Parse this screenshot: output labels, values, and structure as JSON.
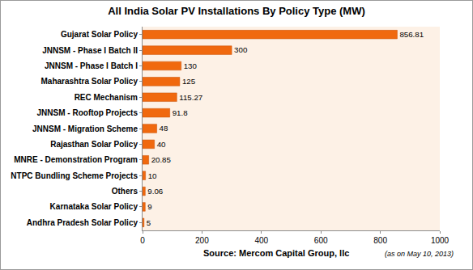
{
  "chart_data": {
    "type": "bar",
    "orientation": "horizontal",
    "title": "All India Solar PV Installations By Policy Type (MW)",
    "categories": [
      "Gujarat Solar Policy",
      "JNNSM - Phase I Batch II",
      "JNNSM - Phase I Batch I",
      "Maharashtra Solar Policy",
      "REC Mechanism",
      "JNNSM - Rooftop Projects",
      "JNNSM - Migration Scheme",
      "Rajasthan Solar Policy",
      "MNRE - Demonstration Program",
      "NTPC Bundling Scheme Projects",
      "Others",
      "Karnataka Solar Policy",
      "Andhra Pradesh Solar Policy"
    ],
    "values": [
      856.81,
      300,
      130,
      125,
      115.27,
      91.8,
      48,
      40,
      20.85,
      10,
      9.06,
      9,
      5
    ],
    "color": "#f0690f",
    "xlim": [
      0,
      1000
    ],
    "xticks": [
      0,
      200,
      400,
      600,
      800,
      1000
    ],
    "grid": false,
    "data_labels": true,
    "annotations": [
      "Source: Mercom Capital Group, llc",
      "(as on May 10, 2013)"
    ]
  }
}
